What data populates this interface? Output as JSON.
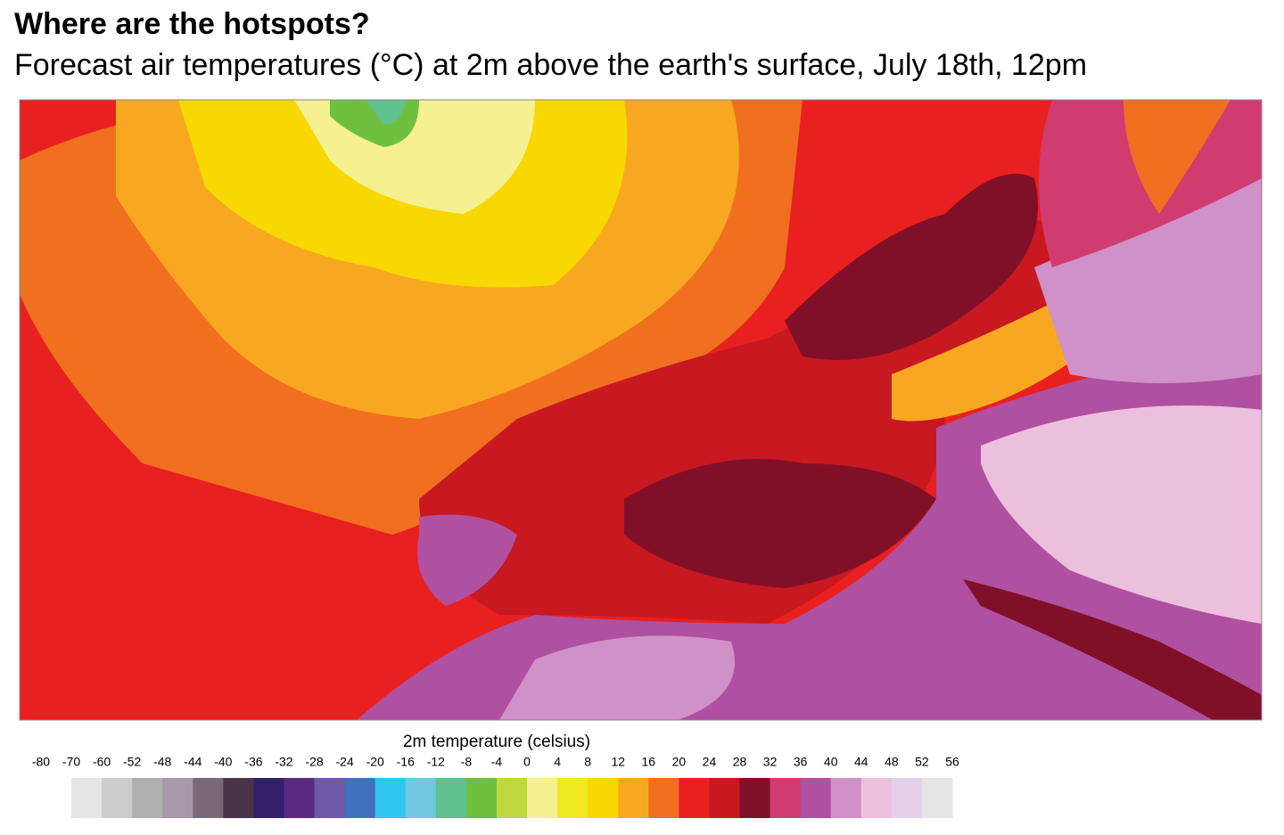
{
  "header": {
    "title": "Where are the hotspots?",
    "subtitle": "Forecast air temperatures (°C) at 2m above the earth's surface, July 18th, 12pm"
  },
  "legend": {
    "title": "2m temperature (celsius)",
    "ticks": [
      -80,
      -70,
      -60,
      -52,
      -48,
      -44,
      -40,
      -36,
      -32,
      -28,
      -24,
      -20,
      -16,
      -12,
      -8,
      -4,
      0,
      4,
      8,
      12,
      16,
      20,
      24,
      28,
      32,
      36,
      40,
      44,
      48,
      52,
      56
    ],
    "colors": [
      "#e6e6e6",
      "#cccccc",
      "#b0b0b0",
      "#a898ac",
      "#7a6878",
      "#4a3448",
      "#32206a",
      "#5a2a82",
      "#6e58a8",
      "#4070c0",
      "#30c4f0",
      "#70c8e0",
      "#60c090",
      "#70c040",
      "#c0d840",
      "#f5f090",
      "#f0e820",
      "#f8d800",
      "#f8a820",
      "#f07020",
      "#e82020",
      "#c81820",
      "#801028",
      "#d03c70",
      "#b050a0",
      "#d090c8",
      "#ecc0dc",
      "#e4d0e8",
      "#e4e4e4"
    ]
  }
}
